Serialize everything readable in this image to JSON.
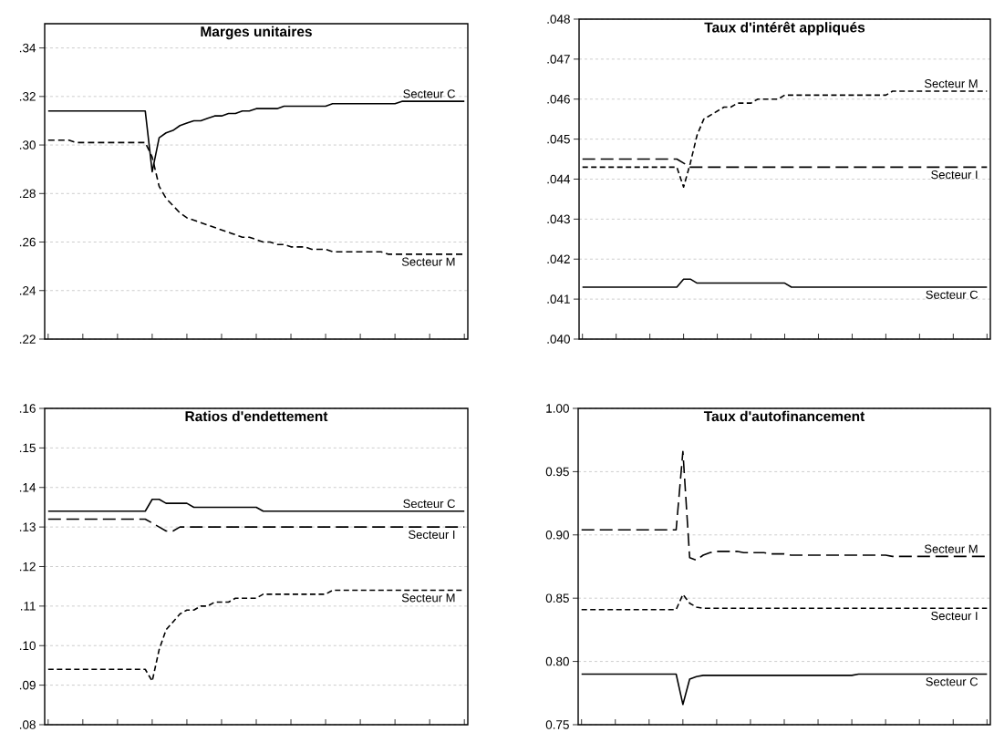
{
  "chart_data": [
    {
      "type": "line",
      "title": "Marges unitaires",
      "grid": "y",
      "ylim": [
        0.22,
        0.35
      ],
      "yticks": [
        {
          "value": 0.22,
          "label": ".22"
        },
        {
          "value": 0.24,
          "label": ".24"
        },
        {
          "value": 0.26,
          "label": ".26"
        },
        {
          "value": 0.28,
          "label": ".28"
        },
        {
          "value": 0.3,
          "label": ".30"
        },
        {
          "value": 0.32,
          "label": ".32"
        },
        {
          "value": 0.34,
          "label": ".34"
        }
      ],
      "categories": [
        null,
        null,
        null,
        null,
        null,
        null,
        null,
        null,
        null,
        null,
        null,
        null,
        null,
        null,
        null,
        null,
        null,
        null,
        null,
        null,
        null,
        null,
        null,
        null,
        null,
        null,
        null,
        null,
        null,
        null,
        null,
        null,
        null,
        null,
        null,
        null,
        null,
        null,
        null,
        null,
        null,
        null,
        null,
        null,
        null,
        null,
        null,
        null,
        null,
        null,
        null,
        null,
        null,
        null,
        null,
        null,
        null,
        null,
        null,
        null,
        null
      ],
      "series": [
        {
          "name": "Secteur C",
          "color": "#000000",
          "line_style": "solid",
          "values": [
            0.314,
            0.314,
            0.314,
            0.314,
            0.314,
            0.314,
            0.314,
            0.314,
            0.314,
            0.314,
            0.314,
            0.314,
            0.314,
            0.314,
            0.314,
            0.289,
            0.303,
            0.305,
            0.306,
            0.308,
            0.309,
            0.31,
            0.31,
            0.311,
            0.312,
            0.312,
            0.313,
            0.313,
            0.314,
            0.314,
            0.315,
            0.315,
            0.315,
            0.315,
            0.316,
            0.316,
            0.316,
            0.316,
            0.316,
            0.316,
            0.316,
            0.317,
            0.317,
            0.317,
            0.317,
            0.317,
            0.317,
            0.317,
            0.317,
            0.317,
            0.317,
            0.318,
            0.318,
            0.318,
            0.318,
            0.318,
            0.318,
            0.318,
            0.318,
            0.318,
            0.318
          ]
        },
        {
          "name": "Secteur M",
          "color": "#000000",
          "line_style": "dashed",
          "values": [
            0.302,
            0.302,
            0.302,
            0.302,
            0.301,
            0.301,
            0.301,
            0.301,
            0.301,
            0.301,
            0.301,
            0.301,
            0.301,
            0.301,
            0.301,
            0.295,
            0.283,
            0.278,
            0.275,
            0.272,
            0.27,
            0.269,
            0.268,
            0.267,
            0.266,
            0.265,
            0.264,
            0.263,
            0.262,
            0.262,
            0.261,
            0.26,
            0.26,
            0.259,
            0.259,
            0.258,
            0.258,
            0.258,
            0.257,
            0.257,
            0.257,
            0.256,
            0.256,
            0.256,
            0.256,
            0.256,
            0.256,
            0.256,
            0.256,
            0.255,
            0.255,
            0.255,
            0.255,
            0.255,
            0.255,
            0.255,
            0.255,
            0.255,
            0.255,
            0.255,
            0.255
          ]
        }
      ]
    },
    {
      "type": "line",
      "title": "Taux d'intérêt appliqués",
      "grid": "y",
      "ylim": [
        0.04,
        0.048
      ],
      "yticks": [
        {
          "value": 0.04,
          "label": ".040"
        },
        {
          "value": 0.041,
          "label": ".041"
        },
        {
          "value": 0.042,
          "label": ".042"
        },
        {
          "value": 0.043,
          "label": ".043"
        },
        {
          "value": 0.044,
          "label": ".044"
        },
        {
          "value": 0.045,
          "label": ".045"
        },
        {
          "value": 0.046,
          "label": ".046"
        },
        {
          "value": 0.047,
          "label": ".047"
        },
        {
          "value": 0.048,
          "label": ".048"
        }
      ],
      "categories": [
        null,
        null,
        null,
        null,
        null,
        null,
        null,
        null,
        null,
        null,
        null,
        null,
        null,
        null,
        null,
        null,
        null,
        null,
        null,
        null,
        null,
        null,
        null,
        null,
        null,
        null,
        null,
        null,
        null,
        null,
        null,
        null,
        null,
        null,
        null,
        null,
        null,
        null,
        null,
        null,
        null,
        null,
        null,
        null,
        null,
        null,
        null,
        null,
        null,
        null,
        null,
        null,
        null,
        null,
        null,
        null,
        null,
        null,
        null,
        null,
        null
      ],
      "series": [
        {
          "name": "Secteur C",
          "color": "#000000",
          "line_style": "solid",
          "values": [
            0.0413,
            0.0413,
            0.0413,
            0.0413,
            0.0413,
            0.0413,
            0.0413,
            0.0413,
            0.0413,
            0.0413,
            0.0413,
            0.0413,
            0.0413,
            0.0413,
            0.0413,
            0.0415,
            0.0415,
            0.0414,
            0.0414,
            0.0414,
            0.0414,
            0.0414,
            0.0414,
            0.0414,
            0.0414,
            0.0414,
            0.0414,
            0.0414,
            0.0414,
            0.0414,
            0.0414,
            0.0413,
            0.0413,
            0.0413,
            0.0413,
            0.0413,
            0.0413,
            0.0413,
            0.0413,
            0.0413,
            0.0413,
            0.0413,
            0.0413,
            0.0413,
            0.0413,
            0.0413,
            0.0413,
            0.0413,
            0.0413,
            0.0413,
            0.0413,
            0.0413,
            0.0413,
            0.0413,
            0.0413,
            0.0413,
            0.0413,
            0.0413,
            0.0413,
            0.0413,
            0.0413
          ]
        },
        {
          "name": "Secteur I",
          "color": "#000000",
          "line_style": "dashed",
          "values": [
            0.0445,
            0.0445,
            0.0445,
            0.0445,
            0.0445,
            0.0445,
            0.0445,
            0.0445,
            0.0445,
            0.0445,
            0.0445,
            0.0445,
            0.0445,
            0.0445,
            0.0445,
            0.0444,
            0.0443,
            0.0443,
            0.0443,
            0.0443,
            0.0443,
            0.0443,
            0.0443,
            0.0443,
            0.0443,
            0.0443,
            0.0443,
            0.0443,
            0.0443,
            0.0443,
            0.0443,
            0.0443,
            0.0443,
            0.0443,
            0.0443,
            0.0443,
            0.0443,
            0.0443,
            0.0443,
            0.0443,
            0.0443,
            0.0443,
            0.0443,
            0.0443,
            0.0443,
            0.0443,
            0.0443,
            0.0443,
            0.0443,
            0.0443,
            0.0443,
            0.0443,
            0.0443,
            0.0443,
            0.0443,
            0.0443,
            0.0443,
            0.0443,
            0.0443,
            0.0443,
            0.0443
          ]
        },
        {
          "name": "Secteur M",
          "color": "#000000",
          "line_style": "dashed",
          "values": [
            0.0443,
            0.0443,
            0.0443,
            0.0443,
            0.0443,
            0.0443,
            0.0443,
            0.0443,
            0.0443,
            0.0443,
            0.0443,
            0.0443,
            0.0443,
            0.0443,
            0.0443,
            0.0438,
            0.0444,
            0.0451,
            0.0455,
            0.0456,
            0.0457,
            0.0458,
            0.0458,
            0.0459,
            0.0459,
            0.0459,
            0.046,
            0.046,
            0.046,
            0.046,
            0.0461,
            0.0461,
            0.0461,
            0.0461,
            0.0461,
            0.0461,
            0.0461,
            0.0461,
            0.0461,
            0.0461,
            0.0461,
            0.0461,
            0.0461,
            0.0461,
            0.0461,
            0.0461,
            0.0462,
            0.0462,
            0.0462,
            0.0462,
            0.0462,
            0.0462,
            0.0462,
            0.0462,
            0.0462,
            0.0462,
            0.0462,
            0.0462,
            0.0462,
            0.0462,
            0.0462
          ]
        }
      ]
    },
    {
      "type": "line",
      "title": "Ratios d'endettement",
      "grid": "y",
      "ylim": [
        0.08,
        0.16
      ],
      "yticks": [
        {
          "value": 0.08,
          "label": ".08"
        },
        {
          "value": 0.09,
          "label": ".09"
        },
        {
          "value": 0.1,
          "label": ".10"
        },
        {
          "value": 0.11,
          "label": ".11"
        },
        {
          "value": 0.12,
          "label": ".12"
        },
        {
          "value": 0.13,
          "label": ".13"
        },
        {
          "value": 0.14,
          "label": ".14"
        },
        {
          "value": 0.15,
          "label": ".15"
        },
        {
          "value": 0.16,
          "label": ".16"
        }
      ],
      "categories": [
        null,
        null,
        null,
        null,
        null,
        null,
        null,
        null,
        null,
        null,
        null,
        null,
        null,
        null,
        null,
        null,
        null,
        null,
        null,
        null,
        null,
        null,
        null,
        null,
        null,
        null,
        null,
        null,
        null,
        null,
        null,
        null,
        null,
        null,
        null,
        null,
        null,
        null,
        null,
        null,
        null,
        null,
        null,
        null,
        null,
        null,
        null,
        null,
        null,
        null,
        null,
        null,
        null,
        null,
        null,
        null,
        null,
        null,
        null,
        null,
        null
      ],
      "series": [
        {
          "name": "Secteur C",
          "color": "#000000",
          "line_style": "solid",
          "values": [
            0.134,
            0.134,
            0.134,
            0.134,
            0.134,
            0.134,
            0.134,
            0.134,
            0.134,
            0.134,
            0.134,
            0.134,
            0.134,
            0.134,
            0.134,
            0.137,
            0.137,
            0.136,
            0.136,
            0.136,
            0.136,
            0.135,
            0.135,
            0.135,
            0.135,
            0.135,
            0.135,
            0.135,
            0.135,
            0.135,
            0.135,
            0.134,
            0.134,
            0.134,
            0.134,
            0.134,
            0.134,
            0.134,
            0.134,
            0.134,
            0.134,
            0.134,
            0.134,
            0.134,
            0.134,
            0.134,
            0.134,
            0.134,
            0.134,
            0.134,
            0.134,
            0.134,
            0.134,
            0.134,
            0.134,
            0.134,
            0.134,
            0.134,
            0.134,
            0.134,
            0.134
          ]
        },
        {
          "name": "Secteur I",
          "color": "#000000",
          "line_style": "dashed",
          "values": [
            0.132,
            0.132,
            0.132,
            0.132,
            0.132,
            0.132,
            0.132,
            0.132,
            0.132,
            0.132,
            0.132,
            0.132,
            0.132,
            0.132,
            0.132,
            0.131,
            0.13,
            0.129,
            0.129,
            0.13,
            0.13,
            0.13,
            0.13,
            0.13,
            0.13,
            0.13,
            0.13,
            0.13,
            0.13,
            0.13,
            0.13,
            0.13,
            0.13,
            0.13,
            0.13,
            0.13,
            0.13,
            0.13,
            0.13,
            0.13,
            0.13,
            0.13,
            0.13,
            0.13,
            0.13,
            0.13,
            0.13,
            0.13,
            0.13,
            0.13,
            0.13,
            0.13,
            0.13,
            0.13,
            0.13,
            0.13,
            0.13,
            0.13,
            0.13,
            0.13,
            0.13
          ]
        },
        {
          "name": "Secteur M",
          "color": "#000000",
          "line_style": "dashed",
          "values": [
            0.094,
            0.094,
            0.094,
            0.094,
            0.094,
            0.094,
            0.094,
            0.094,
            0.094,
            0.094,
            0.094,
            0.094,
            0.094,
            0.094,
            0.094,
            0.091,
            0.099,
            0.104,
            0.106,
            0.108,
            0.109,
            0.109,
            0.11,
            0.11,
            0.111,
            0.111,
            0.111,
            0.112,
            0.112,
            0.112,
            0.112,
            0.113,
            0.113,
            0.113,
            0.113,
            0.113,
            0.113,
            0.113,
            0.113,
            0.113,
            0.113,
            0.114,
            0.114,
            0.114,
            0.114,
            0.114,
            0.114,
            0.114,
            0.114,
            0.114,
            0.114,
            0.114,
            0.114,
            0.114,
            0.114,
            0.114,
            0.114,
            0.114,
            0.114,
            0.114,
            0.114
          ]
        }
      ]
    },
    {
      "type": "line",
      "title": "Taux d'autofinancement",
      "grid": "y",
      "ylim": [
        0.75,
        1.0
      ],
      "yticks": [
        {
          "value": 0.75,
          "label": "0.75"
        },
        {
          "value": 0.8,
          "label": "0.80"
        },
        {
          "value": 0.85,
          "label": "0.85"
        },
        {
          "value": 0.9,
          "label": "0.90"
        },
        {
          "value": 0.95,
          "label": "0.95"
        },
        {
          "value": 1.0,
          "label": "1.00"
        }
      ],
      "categories": [
        null,
        null,
        null,
        null,
        null,
        null,
        null,
        null,
        null,
        null,
        null,
        null,
        null,
        null,
        null,
        null,
        null,
        null,
        null,
        null,
        null,
        null,
        null,
        null,
        null,
        null,
        null,
        null,
        null,
        null,
        null,
        null,
        null,
        null,
        null,
        null,
        null,
        null,
        null,
        null,
        null,
        null,
        null,
        null,
        null,
        null,
        null,
        null,
        null,
        null,
        null,
        null,
        null,
        null,
        null,
        null,
        null,
        null,
        null,
        null,
        null
      ],
      "series": [
        {
          "name": "Secteur M",
          "color": "#000000",
          "line_style": "dashed",
          "values": [
            0.904,
            0.904,
            0.904,
            0.904,
            0.904,
            0.904,
            0.904,
            0.904,
            0.904,
            0.904,
            0.904,
            0.904,
            0.904,
            0.904,
            0.904,
            0.966,
            0.882,
            0.88,
            0.884,
            0.886,
            0.887,
            0.887,
            0.887,
            0.887,
            0.886,
            0.886,
            0.886,
            0.886,
            0.885,
            0.885,
            0.885,
            0.884,
            0.884,
            0.884,
            0.884,
            0.884,
            0.884,
            0.884,
            0.884,
            0.884,
            0.884,
            0.884,
            0.884,
            0.884,
            0.884,
            0.884,
            0.883,
            0.883,
            0.883,
            0.883,
            0.883,
            0.883,
            0.883,
            0.883,
            0.883,
            0.883,
            0.883,
            0.883,
            0.883,
            0.883,
            0.883
          ]
        },
        {
          "name": "Secteur I",
          "color": "#000000",
          "line_style": "dashed",
          "values": [
            0.841,
            0.841,
            0.841,
            0.841,
            0.841,
            0.841,
            0.841,
            0.841,
            0.841,
            0.841,
            0.841,
            0.841,
            0.841,
            0.841,
            0.841,
            0.853,
            0.846,
            0.843,
            0.842,
            0.842,
            0.842,
            0.842,
            0.842,
            0.842,
            0.842,
            0.842,
            0.842,
            0.842,
            0.842,
            0.842,
            0.842,
            0.842,
            0.842,
            0.842,
            0.842,
            0.842,
            0.842,
            0.842,
            0.842,
            0.842,
            0.842,
            0.842,
            0.842,
            0.842,
            0.842,
            0.842,
            0.842,
            0.842,
            0.842,
            0.842,
            0.842,
            0.842,
            0.842,
            0.842,
            0.842,
            0.842,
            0.842,
            0.842,
            0.842,
            0.842,
            0.842
          ]
        },
        {
          "name": "Secteur C",
          "color": "#000000",
          "line_style": "solid",
          "values": [
            0.79,
            0.79,
            0.79,
            0.79,
            0.79,
            0.79,
            0.79,
            0.79,
            0.79,
            0.79,
            0.79,
            0.79,
            0.79,
            0.79,
            0.79,
            0.766,
            0.786,
            0.788,
            0.789,
            0.789,
            0.789,
            0.789,
            0.789,
            0.789,
            0.789,
            0.789,
            0.789,
            0.789,
            0.789,
            0.789,
            0.789,
            0.789,
            0.789,
            0.789,
            0.789,
            0.789,
            0.789,
            0.789,
            0.789,
            0.789,
            0.789,
            0.79,
            0.79,
            0.79,
            0.79,
            0.79,
            0.79,
            0.79,
            0.79,
            0.79,
            0.79,
            0.79,
            0.79,
            0.79,
            0.79,
            0.79,
            0.79,
            0.79,
            0.79,
            0.79,
            0.79
          ]
        }
      ]
    }
  ]
}
